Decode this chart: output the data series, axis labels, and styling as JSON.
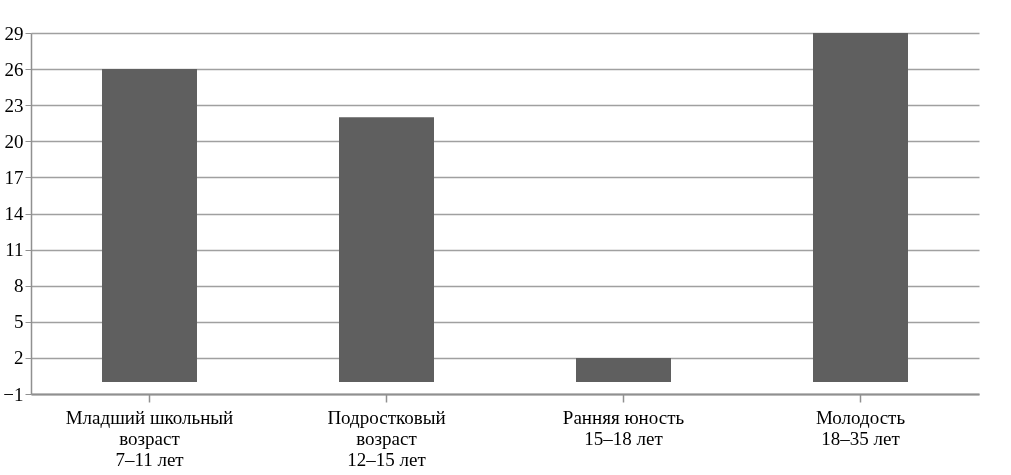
{
  "chart_data": {
    "type": "bar",
    "categories": [
      "Младший школьный\nвозраст\n7–11 лет",
      "Подростковый\nвозраст\n12–15 лет",
      "Ранняя юность\n15–18 лет",
      "Молодость\n18–35 лет"
    ],
    "values": [
      26,
      22,
      2,
      29
    ],
    "color": "#5f5f5f",
    "ylim": [
      -1,
      29
    ],
    "yticks": [
      -1,
      2,
      5,
      8,
      11,
      14,
      17,
      20,
      23,
      26,
      29
    ],
    "grid": "y"
  }
}
